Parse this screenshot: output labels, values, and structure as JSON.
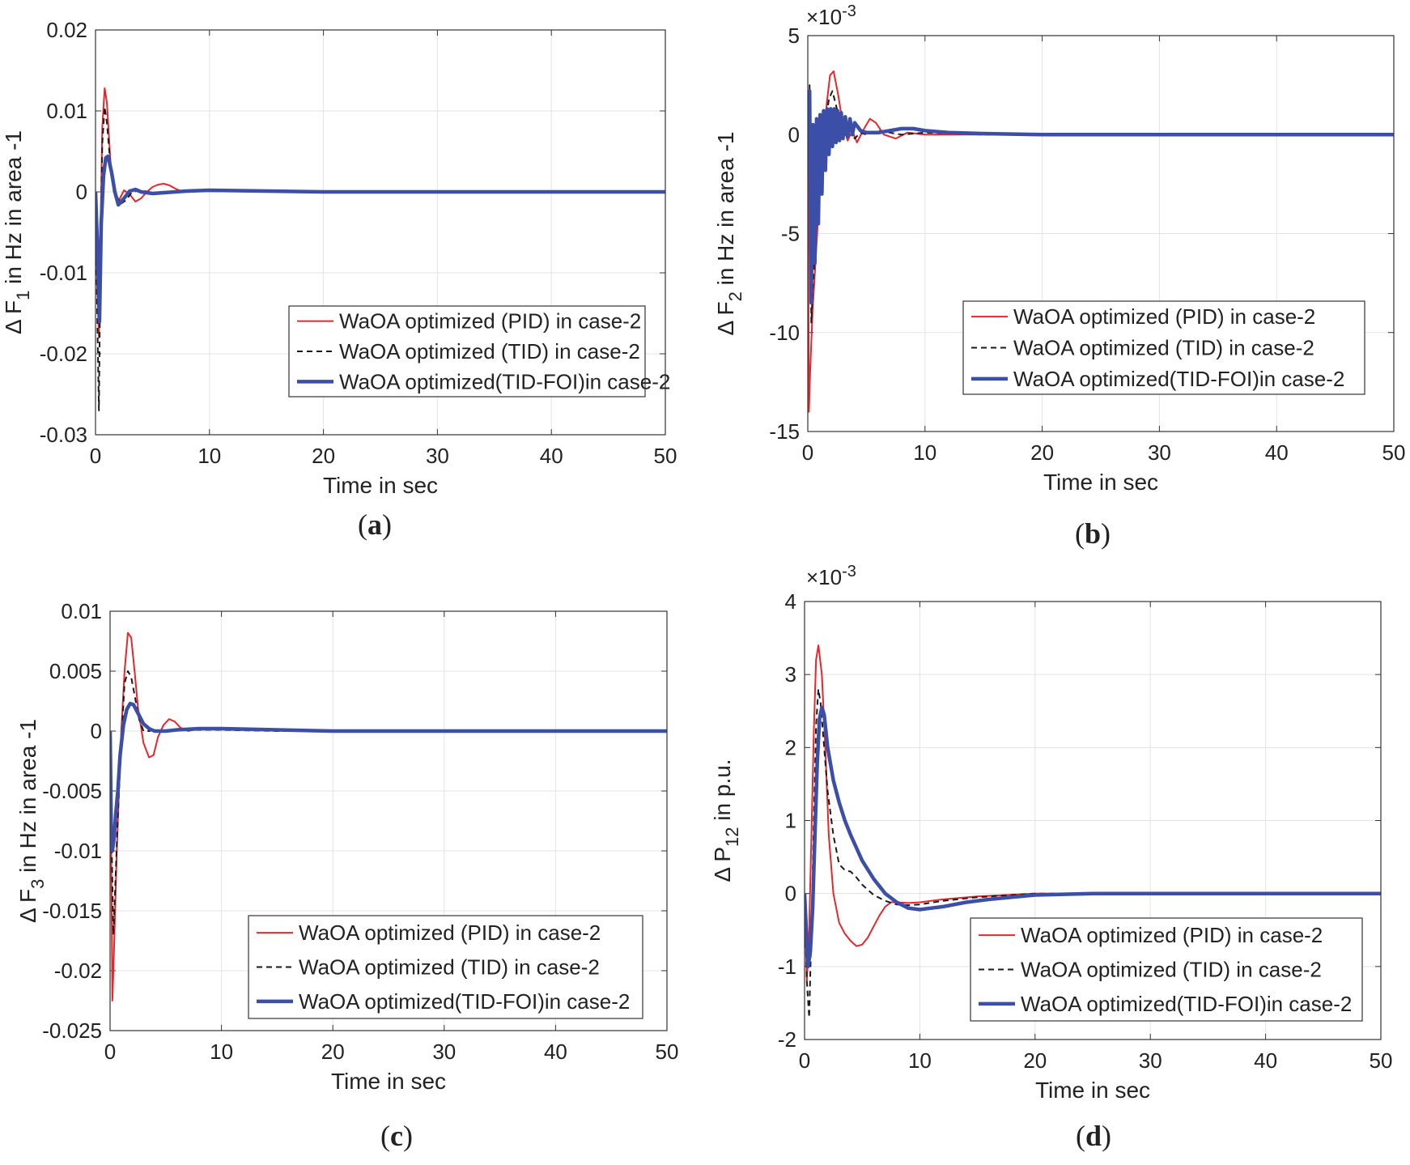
{
  "chart_data": [
    {
      "id": "a",
      "type": "line",
      "panel_label": "(a)",
      "panel_letter": "a",
      "xlabel": "Time in sec",
      "ylabel_parts": [
        "Δ F",
        "1",
        " in Hz in area -1"
      ],
      "xlim": [
        0,
        50
      ],
      "ylim": [
        -0.03,
        0.02
      ],
      "xticks": [
        0,
        10,
        20,
        30,
        40,
        50
      ],
      "yticks": [
        -0.03,
        -0.02,
        -0.01,
        0,
        0.01,
        0.02
      ],
      "ytick_labels": [
        "-0.03",
        "-0.02",
        "-0.01",
        "0",
        "0.01",
        "0.02"
      ],
      "exponent": "",
      "grid": true,
      "legend_position": "lower-right",
      "series": [
        {
          "name": "WaOA optimized (PID) in case-2",
          "style": "red-solid",
          "x": [
            0,
            0.15,
            0.3,
            0.45,
            0.6,
            0.8,
            1.0,
            1.3,
            1.6,
            2.0,
            2.5,
            3.0,
            3.5,
            4.0,
            4.5,
            5.0,
            5.5,
            6.0,
            6.5,
            7.0,
            7.5,
            8.0,
            9.0,
            10,
            15,
            20,
            30,
            40,
            50
          ],
          "y": [
            0,
            -0.012,
            -0.018,
            -0.004,
            0.008,
            0.0128,
            0.011,
            0.004,
            0.0,
            -0.0012,
            0.0002,
            -0.0003,
            -0.0012,
            -0.0008,
            0.0,
            0.0006,
            0.0009,
            0.001,
            0.0008,
            0.0004,
            0.0001,
            0.0,
            0.0001,
            0.0001,
            0.0,
            0.0,
            0.0,
            0.0,
            0.0
          ]
        },
        {
          "name": "WaOA optimized (TID) in case-2",
          "style": "black-dashed",
          "x": [
            0,
            0.15,
            0.3,
            0.45,
            0.6,
            0.8,
            1.0,
            1.3,
            1.7,
            2.2,
            2.7,
            3.2,
            4.0,
            5.0,
            6.0,
            8.0,
            10,
            20,
            30,
            40,
            50
          ],
          "y": [
            0,
            -0.015,
            -0.027,
            -0.006,
            0.006,
            0.0105,
            0.0085,
            0.0035,
            0.0,
            -0.0015,
            -0.001,
            0.0,
            0.0002,
            -0.0001,
            0.0,
            0.0001,
            0.0001,
            0.0,
            0.0,
            0.0,
            0.0
          ]
        },
        {
          "name": "WaOA optimized(TID-FOI)in case-2",
          "style": "blue-thick",
          "x": [
            0,
            0.2,
            0.35,
            0.5,
            0.7,
            0.9,
            1.1,
            1.4,
            1.7,
            2.0,
            2.5,
            3.0,
            3.5,
            4.0,
            5.0,
            6.0,
            8.0,
            10,
            15,
            20,
            30,
            40,
            50
          ],
          "y": [
            0,
            -0.008,
            -0.016,
            -0.004,
            0.002,
            0.0042,
            0.0044,
            0.0025,
            0.0,
            -0.0016,
            -0.0008,
            0.0001,
            0.0003,
            0.0,
            -0.0002,
            -0.0001,
            0.0001,
            0.0002,
            0.0001,
            0.0,
            0.0,
            0.0,
            0.0
          ]
        }
      ]
    },
    {
      "id": "b",
      "type": "line",
      "panel_label": "(b)",
      "panel_letter": "b",
      "xlabel": "Time in sec",
      "ylabel_parts": [
        "Δ F",
        "2",
        " in Hz in area -1"
      ],
      "xlim": [
        0,
        50
      ],
      "ylim": [
        -15,
        5
      ],
      "xticks": [
        0,
        10,
        20,
        30,
        40,
        50
      ],
      "yticks": [
        -15,
        -10,
        -5,
        0,
        5
      ],
      "ytick_labels": [
        "-15",
        "-10",
        "-5",
        "0",
        "5"
      ],
      "exponent": "×10",
      "exponent_power": "-3",
      "grid": true,
      "legend_position": "lower-right",
      "series": [
        {
          "name": "WaOA optimized (PID) in case-2",
          "style": "red-solid",
          "x": [
            0,
            0.1,
            0.2,
            0.4,
            0.6,
            0.8,
            1.0,
            1.3,
            1.6,
            1.9,
            2.2,
            2.6,
            3.0,
            3.4,
            3.8,
            4.2,
            4.8,
            5.3,
            5.8,
            6.5,
            7.5,
            8.5,
            10,
            15,
            20,
            30,
            40,
            50
          ],
          "y": [
            0,
            -14,
            -12,
            -9,
            -7,
            -5,
            -3,
            -1,
            1.5,
            3,
            3.2,
            2,
            0.5,
            -0.3,
            0.2,
            -0.4,
            0.3,
            0.8,
            0.6,
            0.0,
            -0.2,
            0.1,
            0.0,
            0.0,
            0.0,
            0.0,
            0.0,
            0.0
          ]
        },
        {
          "name": "WaOA optimized (TID) in case-2",
          "style": "black-dashed",
          "x": [
            0,
            0.15,
            0.3,
            0.5,
            0.7,
            0.9,
            1.2,
            1.5,
            1.8,
            2.1,
            2.4,
            2.8,
            3.2,
            3.6,
            4.0,
            4.5,
            5.0,
            6.0,
            7.0,
            8.0,
            10,
            15,
            20,
            30,
            40,
            50
          ],
          "y": [
            0,
            2.5,
            -9.5,
            -7,
            -5,
            -3,
            -1,
            0.5,
            1.8,
            2.2,
            1.5,
            0.5,
            0.0,
            0.3,
            -0.2,
            0.1,
            0.0,
            0.2,
            0.1,
            0.0,
            0.1,
            0.0,
            0.0,
            0.0,
            0.0,
            0.0
          ]
        },
        {
          "name": "WaOA optimized(TID-FOI)in case-2",
          "style": "blue-thick",
          "x": [
            0,
            0.15,
            0.3,
            0.45,
            0.6,
            0.75,
            0.9,
            1.05,
            1.2,
            1.35,
            1.5,
            1.65,
            1.8,
            1.95,
            2.1,
            2.25,
            2.4,
            2.55,
            2.7,
            2.85,
            3.0,
            3.2,
            3.4,
            3.6,
            3.8,
            4.0,
            4.5,
            5.0,
            6.0,
            7.0,
            8.0,
            9.0,
            10,
            12,
            15,
            20,
            30,
            40,
            50
          ],
          "y": [
            0,
            2.2,
            -8.5,
            0.5,
            -6.5,
            0.8,
            -4.5,
            1.0,
            -3.0,
            1.2,
            -1.8,
            1.3,
            -1.0,
            1.3,
            -0.6,
            1.3,
            -0.4,
            1.2,
            -0.3,
            1.1,
            -0.2,
            0.9,
            -0.1,
            0.8,
            0.0,
            0.6,
            0.2,
            0.1,
            0.1,
            0.2,
            0.3,
            0.3,
            0.2,
            0.1,
            0.05,
            0.0,
            0.0,
            0.0,
            0.0
          ]
        }
      ]
    },
    {
      "id": "c",
      "type": "line",
      "panel_label": "(c)",
      "panel_letter": "c",
      "xlabel": "Time in sec",
      "ylabel_parts": [
        "Δ F",
        "3",
        " in Hz in area -1"
      ],
      "xlim": [
        0,
        50
      ],
      "ylim": [
        -0.025,
        0.01
      ],
      "xticks": [
        0,
        10,
        20,
        30,
        40,
        50
      ],
      "yticks": [
        -0.025,
        -0.02,
        -0.015,
        -0.01,
        -0.005,
        0,
        0.005,
        0.01
      ],
      "ytick_labels": [
        "-0.025",
        "-0.02",
        "-0.015",
        "-0.01",
        "-0.005",
        "0",
        "0.005",
        "0.01"
      ],
      "exponent": "",
      "grid": true,
      "legend_position": "lower-right",
      "series": [
        {
          "name": "WaOA optimized (PID) in case-2",
          "style": "red-solid",
          "x": [
            0,
            0.1,
            0.2,
            0.3,
            0.45,
            0.6,
            0.8,
            1.0,
            1.3,
            1.6,
            1.9,
            2.2,
            2.5,
            3.0,
            3.5,
            3.9,
            4.3,
            4.8,
            5.3,
            5.8,
            6.3,
            7.0,
            8.0,
            10,
            15,
            20,
            30,
            40,
            50
          ],
          "y": [
            0,
            -0.01,
            -0.0225,
            -0.02,
            -0.015,
            -0.01,
            -0.005,
            0.0,
            0.005,
            0.0082,
            0.0078,
            0.005,
            0.002,
            -0.001,
            -0.0022,
            -0.002,
            -0.0005,
            0.0005,
            0.001,
            0.0008,
            0.0003,
            0.0,
            0.0002,
            0.0002,
            0.0001,
            0.0,
            0.0,
            0.0,
            0.0
          ]
        },
        {
          "name": "WaOA optimized (TID) in case-2",
          "style": "black-dashed",
          "x": [
            0,
            0.15,
            0.3,
            0.5,
            0.7,
            1.0,
            1.3,
            1.6,
            1.9,
            2.2,
            2.6,
            3.0,
            3.5,
            4.0,
            5.0,
            7.0,
            10,
            15,
            20,
            30,
            40,
            50
          ],
          "y": [
            0,
            -0.01,
            -0.017,
            -0.012,
            -0.007,
            -0.001,
            0.004,
            0.005,
            0.0045,
            0.003,
            0.001,
            0.0,
            0.0,
            0.0001,
            0.0,
            0.0001,
            0.0001,
            0.0,
            0.0,
            0.0,
            0.0,
            0.0
          ]
        },
        {
          "name": "WaOA optimized(TID-FOI)in case-2",
          "style": "blue-thick",
          "x": [
            0,
            0.1,
            0.2,
            0.35,
            0.5,
            0.7,
            0.9,
            1.2,
            1.5,
            1.8,
            2.1,
            2.5,
            3.0,
            3.5,
            4.0,
            5.0,
            6.0,
            8.0,
            10,
            15,
            20,
            30,
            40,
            50
          ],
          "y": [
            0,
            -0.008,
            -0.01,
            -0.009,
            -0.007,
            -0.005,
            -0.002,
            0.0005,
            0.0018,
            0.0023,
            0.0022,
            0.0015,
            0.0006,
            0.0002,
            0.0,
            0.0,
            0.0001,
            0.0002,
            0.0002,
            0.0001,
            0.0,
            0.0,
            0.0,
            0.0
          ]
        }
      ]
    },
    {
      "id": "d",
      "type": "line",
      "panel_label": "(d)",
      "panel_letter": "d",
      "xlabel": "Time in sec",
      "ylabel_parts": [
        "Δ P",
        "12",
        "  in p.u."
      ],
      "xlim": [
        0,
        50
      ],
      "ylim": [
        -2,
        4
      ],
      "xticks": [
        0,
        10,
        20,
        30,
        40,
        50
      ],
      "yticks": [
        -2,
        -1,
        0,
        1,
        2,
        3,
        4
      ],
      "ytick_labels": [
        "-2",
        "-1",
        "0",
        "1",
        "2",
        "3",
        "4"
      ],
      "exponent": "×10",
      "exponent_power": "-3",
      "grid": true,
      "legend_position": "lower-right",
      "series": [
        {
          "name": "WaOA optimized (PID) in case-2",
          "style": "red-solid",
          "x": [
            0,
            0.2,
            0.4,
            0.6,
            0.8,
            1.0,
            1.2,
            1.5,
            1.8,
            2.1,
            2.5,
            3.0,
            3.5,
            4.0,
            4.5,
            5.0,
            5.5,
            6.0,
            6.5,
            7.0,
            7.5,
            8.0,
            9.0,
            10,
            12,
            15,
            20,
            30,
            40,
            50
          ],
          "y": [
            0,
            -1.2,
            -0.5,
            0.8,
            2.2,
            3.2,
            3.4,
            3.0,
            2.0,
            0.8,
            0.0,
            -0.4,
            -0.55,
            -0.65,
            -0.72,
            -0.7,
            -0.6,
            -0.45,
            -0.3,
            -0.18,
            -0.12,
            -0.12,
            -0.13,
            -0.12,
            -0.08,
            -0.04,
            0.0,
            0.0,
            0.0,
            0.0
          ]
        },
        {
          "name": "WaOA optimized (TID) in case-2",
          "style": "black-dashed",
          "x": [
            0,
            0.2,
            0.4,
            0.6,
            0.8,
            1.0,
            1.2,
            1.4,
            1.7,
            2.0,
            2.5,
            3.0,
            3.5,
            4.0,
            4.5,
            5.0,
            6.0,
            7.0,
            8.0,
            9.0,
            10,
            12,
            15,
            20,
            30,
            40,
            50
          ],
          "y": [
            0,
            -1.2,
            -1.7,
            -0.5,
            1.0,
            2.3,
            2.8,
            2.6,
            2.0,
            1.4,
            0.8,
            0.4,
            0.32,
            0.3,
            0.22,
            0.12,
            -0.02,
            -0.1,
            -0.15,
            -0.16,
            -0.15,
            -0.1,
            -0.05,
            0.0,
            0.0,
            0.0,
            0.0
          ]
        },
        {
          "name": "WaOA optimized(TID-FOI)in case-2",
          "style": "blue-thick",
          "x": [
            0,
            0.15,
            0.3,
            0.5,
            0.7,
            0.9,
            1.1,
            1.3,
            1.5,
            1.7,
            2.0,
            2.5,
            3.0,
            3.5,
            4.0,
            5.0,
            6.0,
            7.0,
            8.0,
            9.0,
            10,
            11,
            12,
            14,
            16,
            20,
            25,
            30,
            40,
            50
          ],
          "y": [
            0,
            -0.5,
            -1.0,
            -0.8,
            -0.2,
            0.8,
            1.8,
            2.4,
            2.55,
            2.45,
            2.0,
            1.55,
            1.25,
            1.0,
            0.8,
            0.45,
            0.2,
            0.0,
            -0.12,
            -0.2,
            -0.22,
            -0.2,
            -0.18,
            -0.12,
            -0.08,
            -0.02,
            0.0,
            0.0,
            0.0,
            0.0
          ]
        }
      ]
    }
  ]
}
